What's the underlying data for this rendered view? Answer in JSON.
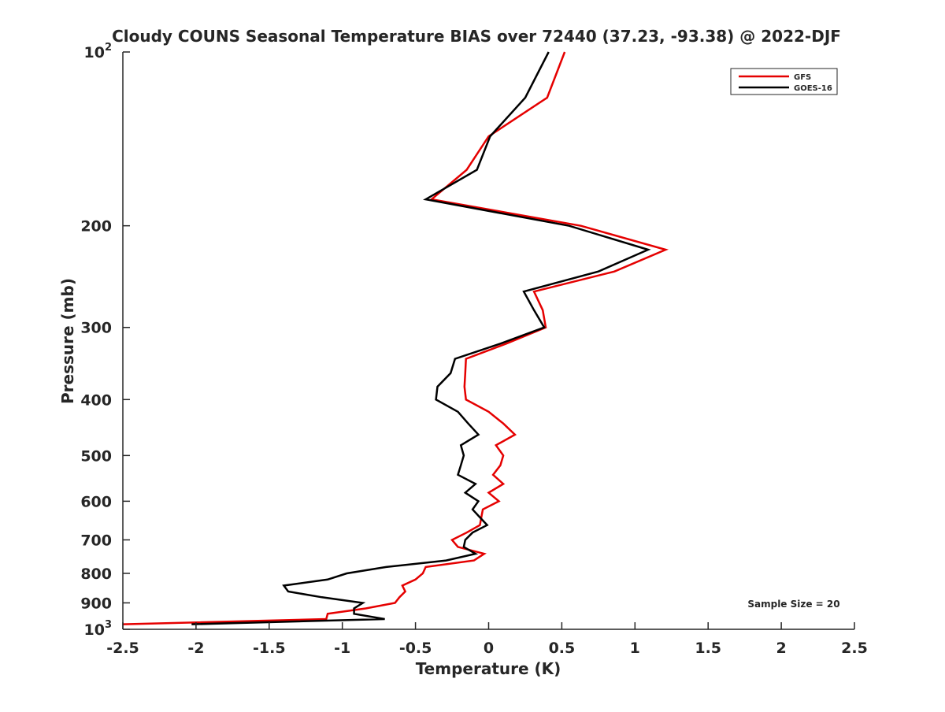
{
  "chart_data": {
    "type": "line",
    "title": "Cloudy COUNS Seasonal Temperature BIAS over 72440 (37.23, -93.38) @ 2022-DJF",
    "xlabel": "Temperature (K)",
    "ylabel": "Pressure (mb)",
    "xlim": [
      -2.5,
      2.5
    ],
    "ylim": [
      100,
      1000
    ],
    "yscale": "log",
    "y_reversed": true,
    "grid": false,
    "legend_position": "top-right",
    "annotation": "Sample Size = 20",
    "xticks": [
      -2.5,
      -2,
      -1.5,
      -1,
      -0.5,
      0,
      0.5,
      1,
      1.5,
      2,
      2.5
    ],
    "xtick_labels": [
      "-2.5",
      "-2",
      "-1.5",
      "-1",
      "-0.5",
      "0",
      "0.5",
      "1",
      "1.5",
      "2",
      "2.5"
    ],
    "yticks": [
      100,
      200,
      300,
      400,
      500,
      600,
      700,
      800,
      900,
      1000
    ],
    "ytick_labels": [
      "10²",
      "200",
      "300",
      "400",
      "500",
      "600",
      "700",
      "800",
      "900",
      "10³"
    ],
    "pressure": [
      100,
      120,
      140,
      160,
      180,
      200,
      220,
      240,
      260,
      280,
      300,
      320,
      340,
      360,
      380,
      400,
      420,
      440,
      460,
      480,
      500,
      520,
      540,
      560,
      580,
      600,
      620,
      640,
      660,
      680,
      700,
      720,
      740,
      760,
      780,
      800,
      820,
      840,
      860,
      880,
      900,
      920,
      940,
      960,
      980
    ],
    "series": [
      {
        "name": "GFS",
        "color": "#e50000",
        "values": [
          0.52,
          0.4,
          0.0,
          -0.15,
          -0.39,
          0.63,
          1.21,
          0.86,
          0.31,
          0.37,
          0.39,
          0.12,
          -0.155,
          -0.16,
          -0.165,
          -0.155,
          0.0,
          0.1,
          0.18,
          0.05,
          0.1,
          0.08,
          0.03,
          0.1,
          0.0,
          0.07,
          -0.04,
          -0.05,
          -0.06,
          -0.15,
          -0.25,
          -0.21,
          -0.03,
          -0.1,
          -0.43,
          -0.45,
          -0.5,
          -0.59,
          -0.57,
          -0.61,
          -0.64,
          -0.84,
          -1.1,
          -1.11,
          -2.5
        ]
      },
      {
        "name": "GOES-16",
        "color": "#000000",
        "values": [
          0.41,
          0.25,
          0.01,
          -0.08,
          -0.43,
          0.55,
          1.09,
          0.75,
          0.24,
          0.31,
          0.38,
          0.08,
          -0.23,
          -0.26,
          -0.35,
          -0.36,
          -0.21,
          -0.14,
          -0.07,
          -0.19,
          -0.17,
          -0.19,
          -0.21,
          -0.09,
          -0.16,
          -0.07,
          -0.11,
          -0.06,
          -0.01,
          -0.11,
          -0.16,
          -0.17,
          -0.09,
          -0.29,
          -0.7,
          -0.97,
          -1.1,
          -1.4,
          -1.37,
          -1.14,
          -0.86,
          -0.92,
          -0.92,
          -0.71,
          -2.03
        ]
      }
    ]
  }
}
